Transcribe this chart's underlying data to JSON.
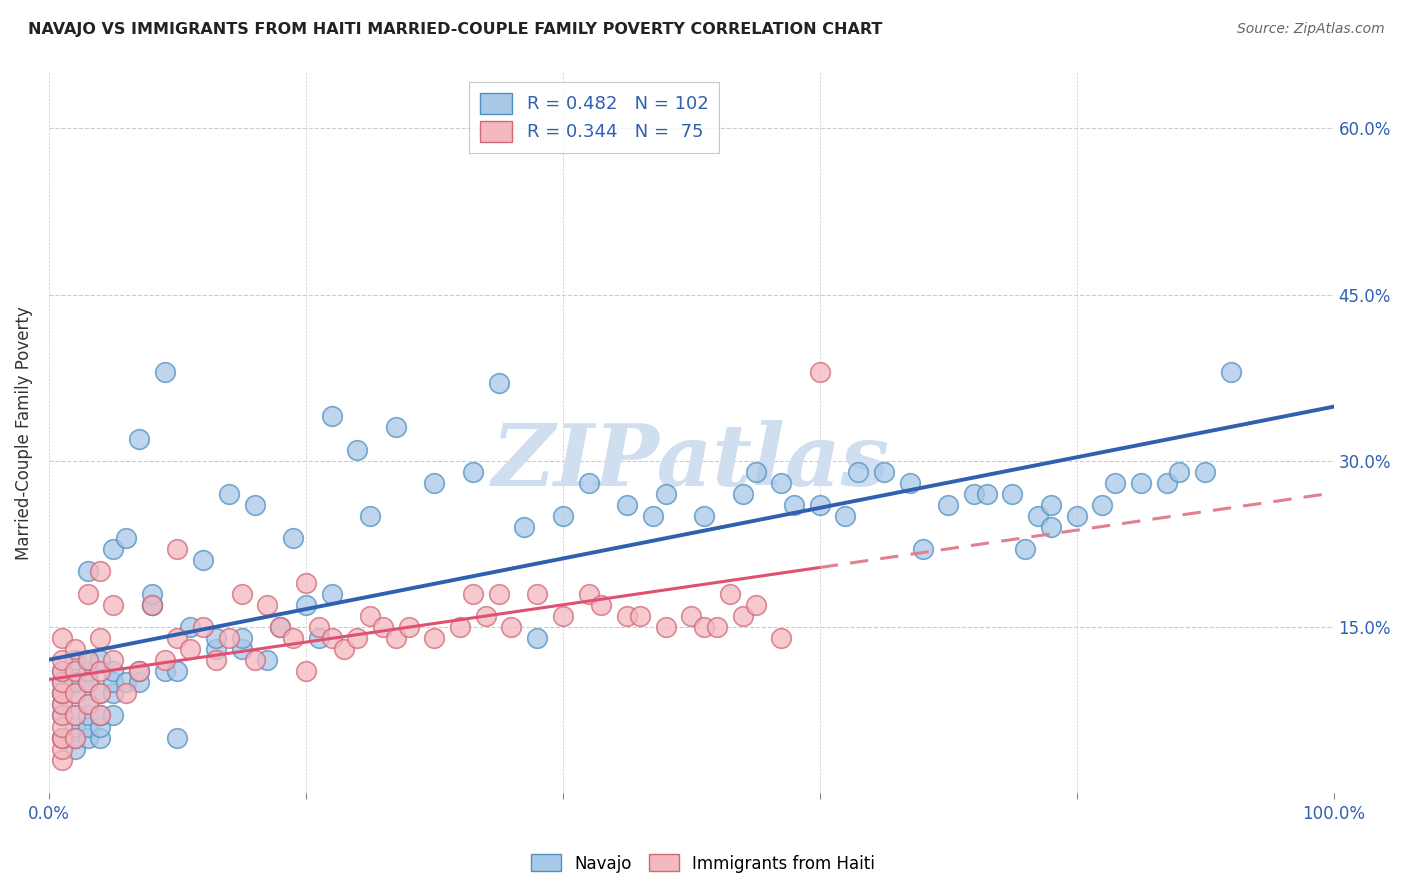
{
  "title": "NAVAJO VS IMMIGRANTS FROM HAITI MARRIED-COUPLE FAMILY POVERTY CORRELATION CHART",
  "source": "Source: ZipAtlas.com",
  "ylabel": "Married-Couple Family Poverty",
  "xlim": [
    0,
    100
  ],
  "ylim": [
    0,
    65
  ],
  "x_ticks": [
    0,
    20,
    40,
    60,
    80,
    100
  ],
  "y_ticks": [
    0,
    15,
    30,
    45,
    60
  ],
  "y_tick_labels": [
    "",
    "15.0%",
    "30.0%",
    "45.0%",
    "60.0%"
  ],
  "navajo_R": "0.482",
  "navajo_N": "102",
  "haiti_R": "0.344",
  "haiti_N": " 75",
  "navajo_scatter_color": "#a8c8e8",
  "navajo_edge_color": "#5090c0",
  "haiti_scatter_color": "#f4b8c0",
  "haiti_edge_color": "#d06878",
  "trend_navajo_color": "#3060b0",
  "trend_haiti_color": "#e05070",
  "trend_haiti_dash_color": "#e08090",
  "watermark_color": "#d0dff0",
  "navajo_x": [
    1,
    1,
    1,
    1,
    1,
    1,
    1,
    2,
    2,
    2,
    2,
    2,
    2,
    2,
    2,
    2,
    3,
    3,
    3,
    3,
    3,
    3,
    3,
    3,
    3,
    4,
    4,
    4,
    4,
    4,
    5,
    5,
    5,
    5,
    5,
    6,
    6,
    7,
    7,
    7,
    8,
    8,
    8,
    9,
    9,
    10,
    10,
    11,
    12,
    13,
    13,
    14,
    15,
    15,
    16,
    17,
    18,
    19,
    20,
    21,
    22,
    22,
    24,
    25,
    27,
    30,
    33,
    35,
    37,
    38,
    40,
    42,
    45,
    47,
    48,
    51,
    54,
    55,
    57,
    58,
    60,
    62,
    63,
    65,
    67,
    68,
    70,
    72,
    73,
    75,
    76,
    77,
    78,
    78,
    80,
    82,
    83,
    85,
    87,
    88,
    90,
    92
  ],
  "navajo_y": [
    5,
    7,
    8,
    9,
    10,
    10,
    11,
    4,
    5,
    6,
    7,
    9,
    10,
    10,
    10,
    12,
    5,
    6,
    7,
    8,
    10,
    10,
    11,
    12,
    20,
    5,
    6,
    7,
    9,
    12,
    7,
    9,
    10,
    11,
    22,
    10,
    23,
    10,
    11,
    32,
    17,
    17,
    18,
    11,
    38,
    5,
    11,
    15,
    21,
    13,
    14,
    27,
    13,
    14,
    26,
    12,
    15,
    23,
    17,
    14,
    18,
    34,
    31,
    25,
    33,
    28,
    29,
    37,
    24,
    14,
    25,
    28,
    26,
    25,
    27,
    25,
    27,
    29,
    28,
    26,
    26,
    25,
    29,
    29,
    28,
    22,
    26,
    27,
    27,
    27,
    22,
    25,
    24,
    26,
    25,
    26,
    28,
    28,
    28,
    29,
    29,
    38
  ],
  "haiti_x": [
    1,
    1,
    1,
    1,
    1,
    1,
    1,
    1,
    1,
    1,
    1,
    1,
    1,
    2,
    2,
    2,
    2,
    2,
    3,
    3,
    3,
    3,
    4,
    4,
    4,
    4,
    4,
    5,
    5,
    6,
    7,
    8,
    9,
    10,
    10,
    11,
    12,
    13,
    14,
    15,
    16,
    17,
    18,
    19,
    20,
    20,
    21,
    22,
    23,
    24,
    25,
    26,
    27,
    28,
    30,
    32,
    33,
    34,
    35,
    36,
    38,
    40,
    42,
    43,
    45,
    46,
    48,
    50,
    51,
    52,
    53,
    54,
    55,
    57,
    60
  ],
  "haiti_y": [
    3,
    4,
    5,
    5,
    6,
    7,
    8,
    9,
    9,
    10,
    11,
    12,
    14,
    5,
    7,
    9,
    11,
    13,
    8,
    10,
    12,
    18,
    7,
    9,
    11,
    14,
    20,
    12,
    17,
    9,
    11,
    17,
    12,
    14,
    22,
    13,
    15,
    12,
    14,
    18,
    12,
    17,
    15,
    14,
    11,
    19,
    15,
    14,
    13,
    14,
    16,
    15,
    14,
    15,
    14,
    15,
    18,
    16,
    18,
    15,
    18,
    16,
    18,
    17,
    16,
    16,
    15,
    16,
    15,
    15,
    18,
    16,
    17,
    14,
    38
  ]
}
